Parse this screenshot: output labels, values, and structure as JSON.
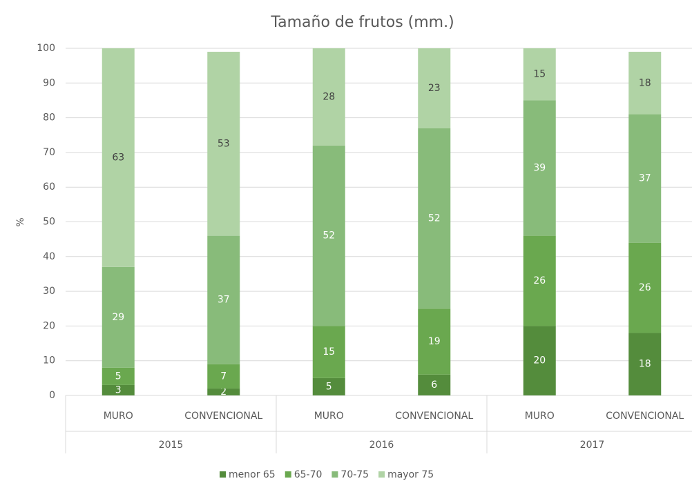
{
  "chart_data": {
    "type": "stacked_bar",
    "title": "Tamaño de frutos (mm.)",
    "y_label": "%",
    "categories": [
      "MURO",
      "CONVENCIONAL",
      "MURO",
      "CONVENCIONAL",
      "MURO",
      "CONVENCIONAL"
    ],
    "groups": [
      "2015",
      "2016",
      "2017"
    ],
    "series": [
      {
        "name": "menor 65",
        "color": "#548c3c",
        "label_color": "#ffffff",
        "values": [
          3,
          2,
          5,
          6,
          20,
          18
        ]
      },
      {
        "name": "65-70",
        "color": "#6aa84f",
        "label_color": "#ffffff",
        "values": [
          5,
          7,
          15,
          19,
          26,
          26
        ]
      },
      {
        "name": "70-75",
        "color": "#88bb7a",
        "label_color": "#ffffff",
        "values": [
          29,
          37,
          52,
          52,
          39,
          37
        ]
      },
      {
        "name": "mayor 75",
        "color": "#b0d3a5",
        "label_color": "#404040",
        "values": [
          63,
          53,
          28,
          23,
          15,
          18
        ]
      }
    ],
    "ylim": [
      0,
      100
    ],
    "yticks": [
      0,
      10,
      20,
      30,
      40,
      50,
      60,
      70,
      80,
      90,
      100
    ],
    "grid": true,
    "legend": "bottom"
  }
}
